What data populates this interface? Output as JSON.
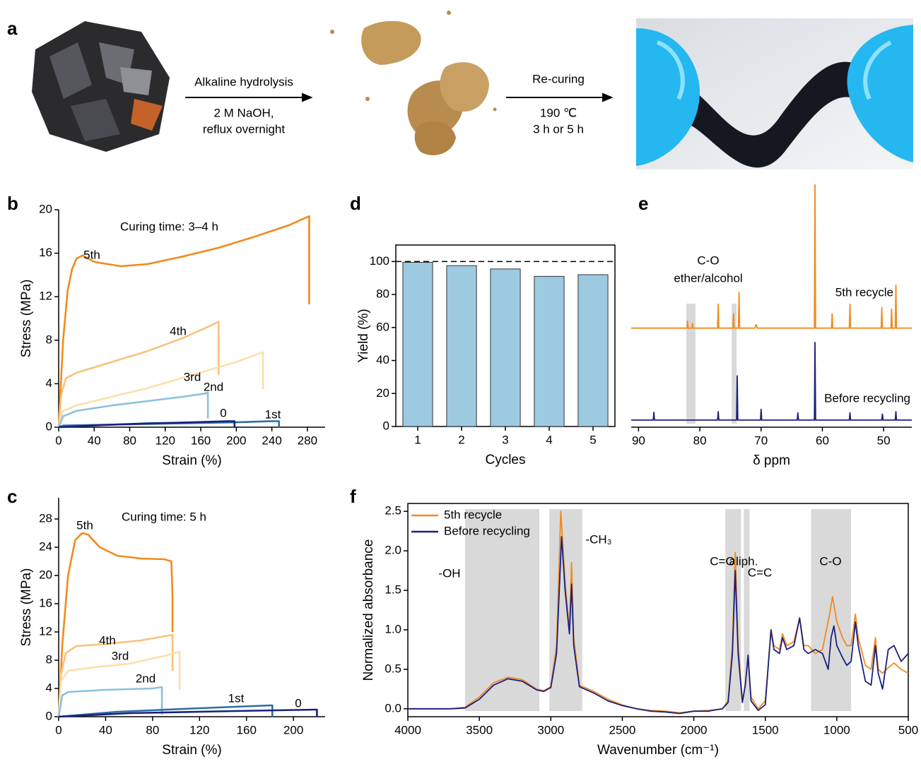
{
  "scheme": {
    "panel": "a",
    "step1": [
      "Alkaline hydrolysis",
      "2 M NaOH,",
      "reflux overnight"
    ],
    "step2": [
      "Re-curing",
      "190 ℃",
      "3 h or 5 h"
    ]
  },
  "chart_data": [
    {
      "panel": "b",
      "type": "line",
      "annotation": "Curing time: 3–4 h",
      "x_label": "Strain (%)",
      "y_label": "Stress (MPa)",
      "xlim": [
        0,
        300
      ],
      "xticks": [
        0,
        40,
        80,
        120,
        160,
        200,
        240,
        280
      ],
      "ylim": [
        0,
        20
      ],
      "yticks": [
        0,
        4,
        8,
        12,
        16,
        20
      ],
      "series": [
        {
          "name": "5th",
          "color": "#f28a1e",
          "x": [
            0,
            5,
            10,
            15,
            20,
            27,
            40,
            70,
            100,
            140,
            180,
            220,
            260,
            282,
            282
          ],
          "values": [
            0,
            8,
            12.5,
            14.5,
            15.5,
            15.8,
            15.2,
            14.8,
            15,
            15.7,
            16.5,
            17.5,
            18.6,
            19.4,
            11.3
          ]
        },
        {
          "name": "4th",
          "color": "#f9c27a",
          "x": [
            0,
            3,
            8,
            20,
            60,
            100,
            140,
            170,
            180,
            180
          ],
          "values": [
            0,
            3,
            4.5,
            5,
            6,
            7,
            8.2,
            9.3,
            9.7,
            4.8
          ]
        },
        {
          "name": "3rd",
          "color": "#fce0a8",
          "x": [
            0,
            5,
            20,
            60,
            100,
            150,
            200,
            230,
            230
          ],
          "values": [
            0,
            1.5,
            2,
            2.8,
            3.6,
            4.8,
            6,
            6.9,
            3.5
          ]
        },
        {
          "name": "2nd",
          "color": "#8cc0e0",
          "x": [
            0,
            5,
            20,
            60,
            100,
            140,
            165,
            168,
            168
          ],
          "values": [
            0,
            1,
            1.5,
            2,
            2.4,
            2.8,
            3.1,
            3.2,
            0.8
          ]
        },
        {
          "name": "1st",
          "color": "#2d6fa3",
          "x": [
            0,
            5,
            100,
            200,
            240,
            248,
            248
          ],
          "values": [
            0,
            0.15,
            0.3,
            0.45,
            0.55,
            0.55,
            0
          ]
        },
        {
          "name": "0",
          "color": "#1a2080",
          "x": [
            0,
            50,
            100,
            150,
            190,
            198,
            198
          ],
          "values": [
            0,
            0.2,
            0.35,
            0.45,
            0.55,
            0.55,
            0
          ]
        }
      ]
    },
    {
      "panel": "c",
      "type": "line",
      "annotation": "Curing time: 5 h",
      "x_label": "Strain (%)",
      "y_label": "Stress (MPa)",
      "xlim": [
        0,
        227
      ],
      "xticks": [
        0,
        40,
        80,
        120,
        160,
        200
      ],
      "ylim": [
        0,
        31
      ],
      "yticks": [
        0,
        4,
        8,
        12,
        16,
        20,
        24,
        28
      ],
      "series": [
        {
          "name": "5th",
          "color": "#f28a1e",
          "x": [
            0,
            3,
            8,
            14,
            20,
            25,
            35,
            50,
            70,
            90,
            96,
            97,
            97
          ],
          "values": [
            0,
            10,
            20,
            25,
            26,
            25.8,
            24,
            22.8,
            22.4,
            22.3,
            22,
            17,
            12
          ]
        },
        {
          "name": "4th",
          "color": "#f9c27a",
          "x": [
            0,
            2,
            6,
            15,
            40,
            70,
            97,
            97
          ],
          "values": [
            0,
            6,
            9,
            10,
            10.3,
            10.8,
            11.6,
            6.5
          ]
        },
        {
          "name": "3rd",
          "color": "#fce0a8",
          "x": [
            0,
            2,
            8,
            30,
            60,
            90,
            103,
            103
          ],
          "values": [
            0,
            5,
            6.5,
            7,
            7.5,
            8.6,
            9.2,
            3.8
          ]
        },
        {
          "name": "2nd",
          "color": "#8cc0e0",
          "x": [
            0,
            3,
            8,
            40,
            80,
            88,
            88
          ],
          "values": [
            0,
            3,
            3.5,
            3.8,
            4,
            4.2,
            0.3
          ]
        },
        {
          "name": "1st",
          "color": "#2d6fa3",
          "x": [
            0,
            50,
            120,
            180,
            182,
            182
          ],
          "values": [
            0,
            0.7,
            1.2,
            1.6,
            1.6,
            0
          ]
        },
        {
          "name": "0",
          "color": "#1a2080",
          "x": [
            0,
            60,
            150,
            218,
            220,
            220
          ],
          "values": [
            0,
            0.5,
            0.8,
            1,
            1,
            0
          ]
        }
      ]
    },
    {
      "panel": "d",
      "type": "bar",
      "x_label": "Cycles",
      "y_label": "Yield (%)",
      "categories": [
        "1",
        "2",
        "3",
        "4",
        "5"
      ],
      "values": [
        99.5,
        97.5,
        95.5,
        91,
        92
      ],
      "color": "#9dcae1",
      "ylim": [
        0,
        110
      ],
      "yticks": [
        0,
        20,
        40,
        60,
        80,
        100
      ],
      "reference_line": 100
    },
    {
      "panel": "e",
      "type": "line",
      "x_label": "δ ppm",
      "annotation_lines": [
        "C-O",
        "ether/alcohol"
      ],
      "xlim": [
        91.2,
        45.4
      ],
      "xticks": [
        90,
        80,
        70,
        60,
        50
      ],
      "ylim": [
        -1.5,
        102
      ],
      "bands": [
        {
          "from": 82.2,
          "to": 80.7
        },
        {
          "from": 74.8,
          "to": 74.0
        }
      ],
      "series": [
        {
          "name": "5th recycle",
          "color": "#f28a1e",
          "x": [
            91.2,
            82.1,
            82,
            81.9,
            81.3,
            81.2,
            81.1,
            77.1,
            77,
            76.9,
            74.6,
            74.5,
            74.4,
            73.7,
            73.6,
            73.5,
            71,
            70.8,
            70.6,
            61.3,
            61.2,
            61.1,
            58.5,
            58.4,
            58.3,
            55.6,
            55.5,
            55.4,
            50.4,
            50.3,
            50.2,
            48.8,
            48.7,
            48.6,
            48.1,
            48,
            47.9,
            45.4
          ],
          "values": [
            40,
            40,
            43,
            40,
            40,
            42,
            40,
            40,
            50,
            40,
            40,
            46,
            40,
            40,
            55,
            40,
            40,
            41.5,
            40,
            40,
            100,
            40,
            40,
            46,
            40,
            40,
            50,
            40,
            40,
            48.5,
            40,
            40,
            48,
            40,
            40,
            58,
            40,
            40
          ]
        },
        {
          "name": "Before recycling",
          "color": "#1a2080",
          "x": [
            91.2,
            87.6,
            87.5,
            87.4,
            77.1,
            77,
            76.9,
            74,
            73.9,
            73.8,
            70.1,
            70,
            69.9,
            64.1,
            64,
            63.9,
            61.3,
            61.2,
            61.1,
            55.6,
            55.5,
            55.4,
            50.3,
            50.2,
            50.1,
            48.1,
            48,
            47.9,
            45.4
          ],
          "values": [
            1.5,
            1.5,
            4.7,
            1.5,
            1.5,
            5,
            1.5,
            1.5,
            20,
            1.5,
            1.5,
            6,
            1.5,
            1.5,
            4.5,
            1.5,
            1.5,
            34,
            1.5,
            1.5,
            4.5,
            1.5,
            1.5,
            4,
            1.5,
            1.5,
            5,
            1.5,
            1.5
          ]
        }
      ]
    },
    {
      "panel": "f",
      "type": "line",
      "x_label": "Wavenumber (cm⁻¹)",
      "y_label": "Normalized absorbance",
      "xlim": [
        4000,
        500
      ],
      "xticks": [
        4000,
        3500,
        3000,
        2500,
        2000,
        1500,
        1000,
        500
      ],
      "ylim": [
        -0.1,
        2.6
      ],
      "yticks": [
        {
          "value": 0,
          "label": "0.0"
        },
        0.5,
        {
          "value": 1,
          "label": "1.0"
        },
        1.5,
        {
          "value": 2,
          "label": "2.0"
        },
        2.5
      ],
      "bands": [
        {
          "from": 3600,
          "to": 3080
        },
        {
          "from": 3010,
          "to": 2780
        },
        {
          "from": 1780,
          "to": 1670
        },
        {
          "from": 1650,
          "to": 1610
        },
        {
          "from": 1180,
          "to": 900
        }
      ],
      "band_labels": [
        "-OH",
        "-CH₃",
        "C=O",
        "aliph.",
        "C=C",
        "C-O"
      ],
      "series": [
        {
          "name": "5th recycle",
          "color": "#f28a1e",
          "x": [
            4000,
            3700,
            3600,
            3500,
            3400,
            3300,
            3200,
            3100,
            3050,
            3000,
            2960,
            2930,
            2900,
            2870,
            2855,
            2840,
            2800,
            2700,
            2600,
            2500,
            2400,
            2300,
            2200,
            2100,
            2000,
            1900,
            1800,
            1760,
            1730,
            1710,
            1690,
            1660,
            1640,
            1620,
            1600,
            1550,
            1500,
            1460,
            1440,
            1400,
            1380,
            1350,
            1300,
            1260,
            1230,
            1200,
            1150,
            1100,
            1050,
            1030,
            1000,
            960,
            930,
            900,
            870,
            850,
            800,
            760,
            730,
            710,
            680,
            640,
            600,
            550,
            500
          ],
          "values": [
            0,
            0,
            0.02,
            0.15,
            0.33,
            0.4,
            0.37,
            0.25,
            0.23,
            0.28,
            0.8,
            2.5,
            1.6,
            1,
            1.85,
            0.9,
            0.3,
            0.22,
            0.12,
            0.05,
            0,
            -0.02,
            -0.03,
            -0.05,
            -0.03,
            -0.02,
            0,
            0.1,
            0.8,
            1.98,
            0.8,
            0.1,
            0.3,
            0.65,
            0.15,
            0,
            0.1,
            1,
            0.8,
            0.75,
            0.95,
            0.8,
            0.85,
            1.15,
            0.8,
            0.8,
            0.7,
            0.75,
            1.2,
            1.42,
            1.1,
            0.9,
            0.8,
            0.8,
            1.2,
            0.9,
            0.55,
            0.5,
            0.9,
            0.5,
            0.45,
            0.52,
            0.58,
            0.5,
            0.45
          ]
        },
        {
          "name": "Before recycling",
          "color": "#1a2080",
          "x": [
            4000,
            3700,
            3600,
            3500,
            3400,
            3300,
            3200,
            3100,
            3050,
            3000,
            2960,
            2925,
            2900,
            2870,
            2855,
            2840,
            2800,
            2700,
            2600,
            2500,
            2400,
            2300,
            2200,
            2100,
            2000,
            1900,
            1800,
            1760,
            1730,
            1710,
            1690,
            1660,
            1640,
            1620,
            1600,
            1550,
            1500,
            1460,
            1440,
            1400,
            1380,
            1350,
            1300,
            1260,
            1230,
            1200,
            1150,
            1100,
            1060,
            1040,
            1020,
            1000,
            960,
            930,
            900,
            870,
            850,
            800,
            760,
            730,
            710,
            680,
            640,
            600,
            550,
            500
          ],
          "values": [
            0,
            0,
            0.01,
            0.12,
            0.3,
            0.38,
            0.35,
            0.24,
            0.22,
            0.27,
            0.7,
            2.18,
            1.5,
            0.95,
            1.58,
            0.8,
            0.28,
            0.2,
            0.1,
            0.04,
            0,
            -0.03,
            -0.04,
            -0.06,
            -0.03,
            -0.03,
            0,
            0.08,
            0.7,
            1.75,
            0.7,
            0.08,
            0.3,
            0.68,
            0.1,
            -0.02,
            0.05,
            1,
            0.75,
            0.7,
            0.9,
            0.75,
            0.8,
            1.15,
            0.75,
            0.7,
            0.75,
            0.7,
            0.5,
            0.9,
            1.05,
            0.8,
            0.65,
            0.55,
            0.6,
            1.1,
            0.8,
            0.35,
            0.3,
            0.8,
            0.45,
            0.25,
            0.75,
            0.8,
            0.6,
            0.7
          ]
        }
      ]
    }
  ]
}
